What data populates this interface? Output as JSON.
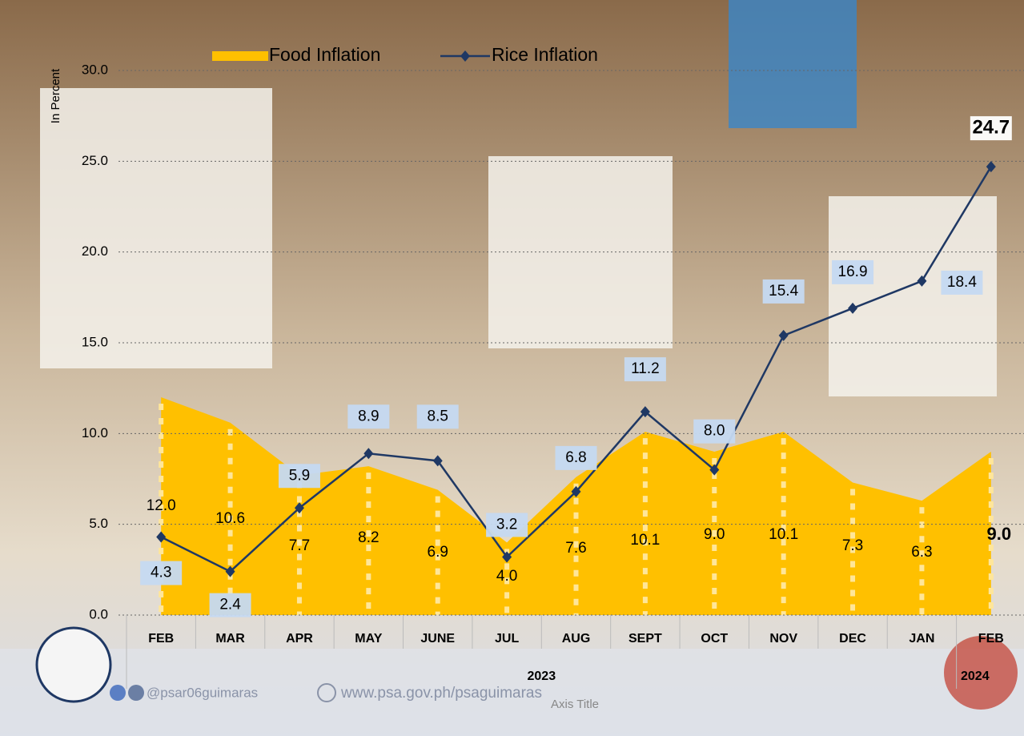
{
  "chart_data": {
    "type": "area-line",
    "x_axis_title": "Axis Title",
    "y_axis_title": "In Percent",
    "categories": [
      "FEB",
      "MAR",
      "APR",
      "MAY",
      "JUNE",
      "JUL",
      "AUG",
      "SEPT",
      "OCT",
      "NOV",
      "DEC",
      "JAN",
      "FEB"
    ],
    "category_groups": [
      "2023",
      "2024"
    ],
    "series": [
      {
        "name": "Food Inflation",
        "color": "#ffc000",
        "values": [
          12.0,
          10.6,
          7.7,
          8.2,
          6.9,
          4.0,
          7.6,
          10.1,
          9.0,
          10.1,
          7.3,
          6.3,
          9.0
        ],
        "value_labels": [
          "12.0",
          "10.6",
          "7.7",
          "8.2",
          "6.9",
          "4.0",
          "7.6",
          "10.1",
          "9.0",
          "10.1",
          "7.3",
          "6.3",
          "9.0"
        ]
      },
      {
        "name": "Rice Inflation",
        "color": "#1f3864",
        "values": [
          4.3,
          2.4,
          5.9,
          8.9,
          8.5,
          3.2,
          6.8,
          11.2,
          8.0,
          15.4,
          16.9,
          18.4,
          24.7
        ],
        "value_labels": [
          "4.3",
          "2.4",
          "5.9",
          "8.9",
          "8.5",
          "3.2",
          "6.8",
          "11.2",
          "8.0",
          "15.4",
          "16.9",
          "18.4",
          "24.7"
        ]
      }
    ],
    "ylim": [
      0,
      30
    ],
    "yticks": [
      {
        "value": 0,
        "label": "0.0"
      },
      {
        "value": 5,
        "label": "5.0"
      },
      {
        "value": 10,
        "label": "10.0"
      },
      {
        "value": 15,
        "label": "15.0"
      },
      {
        "value": 20,
        "label": "20.0"
      },
      {
        "value": 25,
        "label": "25.0"
      },
      {
        "value": 30,
        "label": "30.0"
      }
    ],
    "grid": true,
    "footer": {
      "handle": "@psar06guimaras",
      "website": "www.psa.gov.ph/psaguimaras"
    }
  }
}
